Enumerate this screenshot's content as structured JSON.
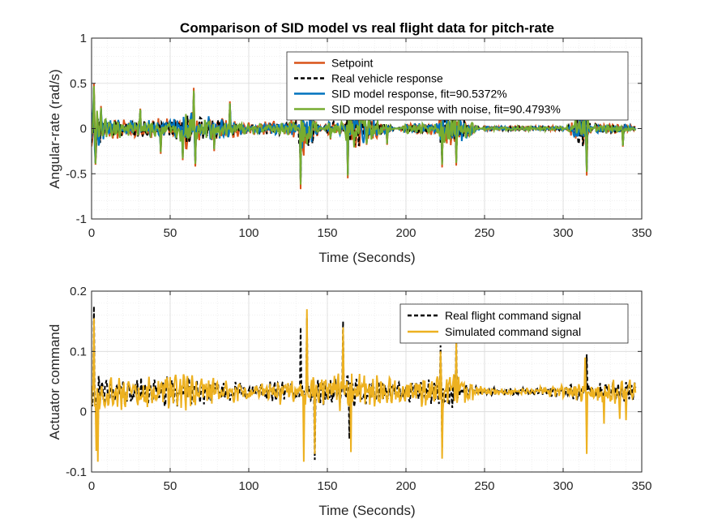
{
  "chart_data": [
    {
      "type": "line",
      "title": "Comparison of SID model vs real flight data for pitch-rate",
      "xlabel": "Time (Seconds)",
      "ylabel": "Angular-rate (rad/s)",
      "xlim": [
        0,
        350
      ],
      "ylim": [
        -1,
        1
      ],
      "xticks": [
        0,
        50,
        100,
        150,
        200,
        250,
        300,
        350
      ],
      "yticks": [
        -1,
        -0.5,
        0,
        0.5,
        1
      ],
      "ytick_labels": [
        "-1",
        "-0.5",
        "0",
        "0.5",
        "1"
      ],
      "grid": true,
      "legend_position": "top-right",
      "series": [
        {
          "name": "Setpoint",
          "color": "#D95319",
          "style": "solid",
          "amplitude": [
            [
              0,
              0.5
            ],
            [
              3,
              0.45
            ],
            [
              10,
              0.2
            ],
            [
              30,
              0.2
            ],
            [
              50,
              0.2
            ],
            [
              62,
              0.45
            ],
            [
              65,
              0.3
            ],
            [
              100,
              0.12
            ],
            [
              130,
              0.18
            ],
            [
              133,
              -0.65
            ],
            [
              150,
              0.15
            ],
            [
              160,
              0.15
            ],
            [
              163,
              -0.55
            ],
            [
              200,
              0.12
            ],
            [
              220,
              0.12
            ],
            [
              222,
              -0.42
            ],
            [
              230,
              -0.4
            ],
            [
              250,
              0.05
            ],
            [
              300,
              0.05
            ],
            [
              314,
              -0.5
            ],
            [
              320,
              0.12
            ],
            [
              340,
              0.1
            ],
            [
              345,
              0.05
            ]
          ],
          "peaks": [
            [
              1.5,
              0.5
            ],
            [
              2.5,
              -0.4
            ],
            [
              65,
              0.45
            ],
            [
              66,
              -0.42
            ],
            [
              133,
              -0.67
            ],
            [
              163,
              -0.55
            ],
            [
              223,
              -0.43
            ],
            [
              232,
              -0.41
            ],
            [
              315,
              -0.52
            ],
            [
              6,
              0.25
            ],
            [
              31,
              0.22
            ],
            [
              44,
              -0.28
            ],
            [
              58,
              -0.35
            ],
            [
              78,
              -0.25
            ],
            [
              88,
              0.3
            ],
            [
              152,
              -0.12
            ],
            [
              175,
              -0.18
            ],
            [
              188,
              -0.18
            ],
            [
              338,
              -0.2
            ]
          ]
        },
        {
          "name": "Real vehicle response",
          "color": "#000000",
          "style": "dashed",
          "amplitude": [
            [
              0,
              0.45
            ],
            [
              3,
              0.4
            ],
            [
              10,
              0.18
            ],
            [
              30,
              0.18
            ],
            [
              50,
              0.18
            ],
            [
              62,
              0.4
            ],
            [
              65,
              0.28
            ],
            [
              100,
              0.1
            ],
            [
              130,
              0.15
            ],
            [
              133,
              -0.6
            ],
            [
              150,
              0.13
            ],
            [
              160,
              0.13
            ],
            [
              163,
              -0.5
            ],
            [
              200,
              0.1
            ],
            [
              220,
              0.1
            ],
            [
              222,
              -0.38
            ],
            [
              230,
              -0.36
            ],
            [
              250,
              0.04
            ],
            [
              300,
              0.04
            ],
            [
              314,
              -0.45
            ],
            [
              320,
              0.1
            ],
            [
              340,
              0.09
            ],
            [
              345,
              0.04
            ]
          ],
          "peaks": [
            [
              1.5,
              0.45
            ],
            [
              2.5,
              -0.38
            ],
            [
              65,
              0.4
            ],
            [
              66,
              -0.38
            ],
            [
              133,
              -0.6
            ],
            [
              163,
              -0.5
            ],
            [
              223,
              -0.38
            ],
            [
              232,
              -0.36
            ],
            [
              315,
              -0.47
            ],
            [
              6,
              0.22
            ],
            [
              31,
              0.2
            ],
            [
              44,
              -0.25
            ],
            [
              58,
              -0.32
            ],
            [
              78,
              -0.22
            ],
            [
              88,
              0.27
            ],
            [
              152,
              -0.1
            ],
            [
              175,
              -0.16
            ],
            [
              188,
              -0.16
            ],
            [
              338,
              -0.18
            ]
          ]
        },
        {
          "name": "SID model response, fit=90.5372%",
          "color": "#0072BD",
          "style": "solid",
          "amplitude": [
            [
              0,
              0.45
            ],
            [
              3,
              0.4
            ],
            [
              10,
              0.18
            ],
            [
              30,
              0.18
            ],
            [
              50,
              0.18
            ],
            [
              62,
              0.4
            ],
            [
              65,
              0.28
            ],
            [
              100,
              0.1
            ],
            [
              130,
              0.15
            ],
            [
              133,
              -0.6
            ],
            [
              150,
              0.13
            ],
            [
              160,
              0.13
            ],
            [
              163,
              -0.5
            ],
            [
              200,
              0.1
            ],
            [
              220,
              0.1
            ],
            [
              222,
              -0.38
            ],
            [
              230,
              -0.36
            ],
            [
              250,
              0.04
            ],
            [
              300,
              0.04
            ],
            [
              314,
              -0.45
            ],
            [
              320,
              0.1
            ],
            [
              340,
              0.09
            ],
            [
              345,
              0.04
            ]
          ],
          "peaks": [
            [
              1.5,
              0.45
            ],
            [
              2.5,
              -0.38
            ],
            [
              65,
              0.4
            ],
            [
              66,
              -0.38
            ],
            [
              133,
              -0.6
            ],
            [
              163,
              -0.5
            ],
            [
              223,
              -0.38
            ],
            [
              232,
              -0.36
            ],
            [
              315,
              -0.47
            ],
            [
              6,
              0.22
            ],
            [
              31,
              0.2
            ],
            [
              44,
              -0.25
            ],
            [
              58,
              -0.32
            ],
            [
              78,
              -0.22
            ],
            [
              88,
              0.27
            ],
            [
              152,
              -0.1
            ],
            [
              175,
              -0.16
            ],
            [
              188,
              -0.16
            ],
            [
              338,
              -0.18
            ]
          ]
        },
        {
          "name": "SID model response with noise, fit=90.4793%",
          "color": "#77AC30",
          "style": "solid",
          "amplitude": [
            [
              0,
              0.45
            ],
            [
              3,
              0.4
            ],
            [
              10,
              0.18
            ],
            [
              30,
              0.18
            ],
            [
              50,
              0.18
            ],
            [
              62,
              0.4
            ],
            [
              65,
              0.28
            ],
            [
              100,
              0.1
            ],
            [
              130,
              0.15
            ],
            [
              133,
              -0.6
            ],
            [
              150,
              0.13
            ],
            [
              160,
              0.13
            ],
            [
              163,
              -0.5
            ],
            [
              200,
              0.1
            ],
            [
              220,
              0.1
            ],
            [
              222,
              -0.38
            ],
            [
              230,
              -0.36
            ],
            [
              250,
              0.04
            ],
            [
              300,
              0.04
            ],
            [
              314,
              -0.45
            ],
            [
              320,
              0.1
            ],
            [
              340,
              0.09
            ],
            [
              345,
              0.04
            ]
          ],
          "peaks": [
            [
              1.5,
              0.47
            ],
            [
              2.5,
              -0.39
            ],
            [
              65,
              0.42
            ],
            [
              66,
              -0.39
            ],
            [
              133,
              -0.62
            ],
            [
              163,
              -0.52
            ],
            [
              223,
              -0.4
            ],
            [
              232,
              -0.38
            ],
            [
              315,
              -0.48
            ],
            [
              6,
              0.23
            ],
            [
              31,
              0.21
            ],
            [
              44,
              -0.26
            ],
            [
              58,
              -0.33
            ],
            [
              78,
              -0.23
            ],
            [
              88,
              0.28
            ],
            [
              152,
              -0.11
            ],
            [
              175,
              -0.17
            ],
            [
              188,
              -0.17
            ],
            [
              338,
              -0.19
            ]
          ]
        }
      ]
    },
    {
      "type": "line",
      "title": "",
      "xlabel": "Time (Seconds)",
      "ylabel": "Actuator command",
      "xlim": [
        0,
        350
      ],
      "ylim": [
        -0.1,
        0.2
      ],
      "xticks": [
        0,
        50,
        100,
        150,
        200,
        250,
        300,
        350
      ],
      "yticks": [
        -0.1,
        0,
        0.1,
        0.2
      ],
      "ytick_labels": [
        "-0.1",
        "0",
        "0.1",
        "0.2"
      ],
      "grid": true,
      "legend_position": "top-right",
      "baseline": 0.033,
      "series": [
        {
          "name": "Real flight command signal",
          "color": "#000000",
          "style": "dashed",
          "amplitude": [
            [
              0,
              0.05
            ],
            [
              10,
              0.04
            ],
            [
              30,
              0.04
            ],
            [
              60,
              0.045
            ],
            [
              100,
              0.025
            ],
            [
              140,
              0.04
            ],
            [
              165,
              0.05
            ],
            [
              200,
              0.03
            ],
            [
              230,
              0.05
            ],
            [
              250,
              0.012
            ],
            [
              280,
              0.012
            ],
            [
              300,
              0.02
            ],
            [
              320,
              0.03
            ],
            [
              345,
              0.03
            ]
          ],
          "peaks": [
            [
              1.5,
              0.175
            ],
            [
              4,
              -0.05
            ],
            [
              133,
              0.14
            ],
            [
              137,
              0.155
            ],
            [
              142,
              -0.08
            ],
            [
              160,
              0.15
            ],
            [
              164,
              -0.045
            ],
            [
              222,
              0.11
            ],
            [
              223,
              -0.06
            ],
            [
              232,
              0.12
            ],
            [
              315,
              0.095
            ]
          ]
        },
        {
          "name": "Simulated command signal",
          "color": "#EDB120",
          "style": "solid",
          "amplitude": [
            [
              0,
              0.06
            ],
            [
              10,
              0.05
            ],
            [
              30,
              0.05
            ],
            [
              60,
              0.055
            ],
            [
              100,
              0.03
            ],
            [
              140,
              0.05
            ],
            [
              165,
              0.06
            ],
            [
              200,
              0.035
            ],
            [
              230,
              0.06
            ],
            [
              250,
              0.012
            ],
            [
              280,
              0.012
            ],
            [
              300,
              0.02
            ],
            [
              320,
              0.035
            ],
            [
              345,
              0.035
            ]
          ],
          "peaks": [
            [
              1.5,
              0.155
            ],
            [
              3,
              -0.065
            ],
            [
              4,
              -0.083
            ],
            [
              135,
              -0.083
            ],
            [
              137,
              0.17
            ],
            [
              142,
              -0.07
            ],
            [
              160,
              0.14
            ],
            [
              165,
              -0.067
            ],
            [
              222,
              0.1
            ],
            [
              223,
              -0.078
            ],
            [
              232,
              0.115
            ],
            [
              314,
              0.09
            ],
            [
              315,
              -0.07
            ],
            [
              326,
              -0.02
            ],
            [
              336,
              -0.012
            ],
            [
              340,
              -0.014
            ]
          ]
        }
      ]
    }
  ]
}
